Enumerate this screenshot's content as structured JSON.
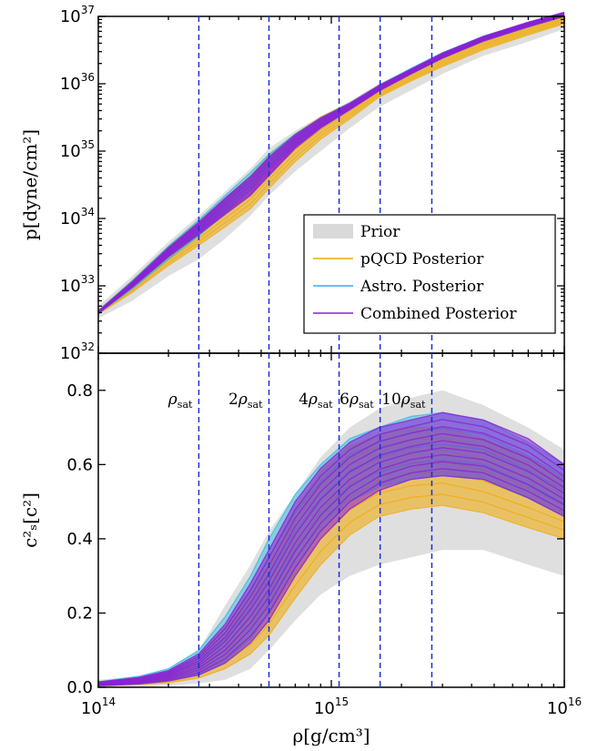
{
  "chart_data": [
    {
      "type": "line",
      "panel": "top",
      "ylabel": "p[dyne/cm²]",
      "yscale": "log",
      "xscale": "log",
      "xlim": [
        100000000000000.0,
        1e+16
      ],
      "ylim": [
        1e+32,
        1e+37
      ],
      "yticks": [
        {
          "base": "10",
          "exp": "32"
        },
        {
          "base": "10",
          "exp": "33"
        },
        {
          "base": "10",
          "exp": "34"
        },
        {
          "base": "10",
          "exp": "35"
        },
        {
          "base": "10",
          "exp": "36"
        },
        {
          "base": "10",
          "exp": "37"
        }
      ],
      "legend": {
        "position": "lower-right",
        "entries": [
          {
            "label": "Prior",
            "color": "#d9d9d9",
            "kind": "patch"
          },
          {
            "label": "pQCD Posterior",
            "color": "#f0a800",
            "kind": "line"
          },
          {
            "label": "Astro. Posterior",
            "color": "#22b8e6",
            "kind": "line"
          },
          {
            "label": "Combined Posterior",
            "color": "#8b1fd4",
            "kind": "line"
          }
        ]
      },
      "bands": {
        "x": [
          100000000000000.0,
          140000000000000.0,
          200000000000000.0,
          270000000000000.0,
          350000000000000.0,
          450000000000000.0,
          540000000000000.0,
          700000000000000.0,
          900000000000000.0,
          1200000000000000.0,
          1600000000000000.0,
          2200000000000000.0,
          3000000000000000.0,
          4500000000000000.0,
          7000000000000000.0,
          1e+16
        ],
        "prior_upper": [
          5e+32,
          1.4e+33,
          4.5e+33,
          1.1e+34,
          2.5e+34,
          5.5e+34,
          1.1e+35,
          2e+35,
          3.3e+35,
          5.5e+35,
          1e+36,
          1.7e+36,
          2.8e+36,
          5e+36,
          8e+36,
          1.1e+37
        ],
        "prior_lower": [
          3.3e+32,
          6e+32,
          1.4e+33,
          2.5e+33,
          5e+33,
          1.1e+34,
          2.2e+34,
          5e+34,
          1e+35,
          2.2e+35,
          4.5e+35,
          8e+35,
          1.4e+36,
          2.6e+36,
          4.2e+36,
          6.5e+36
        ],
        "pqcd_upper": [
          4.3e+32,
          1.2e+33,
          3.8e+33,
          9e+33,
          2e+34,
          4.3e+34,
          8.5e+34,
          1.8e+35,
          3.2e+35,
          5.2e+35,
          9.5e+35,
          1.65e+36,
          2.8e+36,
          5e+36,
          8e+36,
          1.1e+37
        ],
        "pqcd_lower": [
          3.8e+32,
          8e+32,
          2e+33,
          4e+33,
          7.5e+33,
          1.4e+34,
          2.8e+34,
          7e+34,
          1.5e+35,
          3e+35,
          6.3e+35,
          1.1e+36,
          1.8e+36,
          3.2e+36,
          5.3e+36,
          7.8e+36
        ],
        "astro_upper": [
          4.3e+32,
          1.2e+33,
          3.9e+33,
          9.5e+33,
          2.2e+34,
          4.8e+34,
          9e+34,
          1.8e+35,
          3.1e+35,
          5.2e+35,
          9.5e+35,
          1.7e+36,
          2.9e+36,
          5.1e+36,
          8.2e+36,
          1.15e+37
        ],
        "astro_lower": [
          3.9e+32,
          9e+32,
          2.5e+33,
          5.5e+33,
          1.2e+34,
          2.7e+34,
          5.5e+34,
          1.2e+35,
          2.3e+35,
          4.2e+35,
          8e+35,
          1.4e+36,
          2.4e+36,
          4.3e+36,
          7e+36,
          1e+37
        ],
        "combined_upper": [
          4.2e+32,
          1.15e+33,
          3.7e+33,
          8.8e+33,
          2e+34,
          4.2e+34,
          8.2e+34,
          1.75e+35,
          3.1e+35,
          5.1e+35,
          9.4e+35,
          1.65e+36,
          2.85e+36,
          5.05e+36,
          8.2e+36,
          1.15e+37
        ],
        "combined_lower": [
          3.9e+32,
          9.5e+32,
          2.7e+33,
          5.8e+33,
          1.15e+34,
          2.2e+34,
          4.3e+34,
          1.1e+35,
          2.2e+35,
          4.1e+35,
          7.8e+35,
          1.4e+36,
          2.4e+36,
          4.3e+36,
          7e+36,
          1e+37
        ]
      }
    },
    {
      "type": "line",
      "panel": "bottom",
      "xlabel": "ρ[g/cm³]",
      "ylabel": "c²ₛ[c²]",
      "xscale": "log",
      "xlim": [
        100000000000000.0,
        1e+16
      ],
      "ylim": [
        0.0,
        0.9
      ],
      "yticks": [
        "0.0",
        "0.2",
        "0.4",
        "0.6",
        "0.8"
      ],
      "xticks": [
        {
          "base": "10",
          "exp": "14"
        },
        {
          "base": "10",
          "exp": "15"
        },
        {
          "base": "10",
          "exp": "16"
        }
      ],
      "density_markers": [
        {
          "label": "ρ",
          "sub": "sat",
          "mult": "",
          "x": 270000000000000.0
        },
        {
          "label": "ρ",
          "sub": "sat",
          "mult": "2",
          "x": 540000000000000.0
        },
        {
          "label": "ρ",
          "sub": "sat",
          "mult": "4",
          "x": 1080000000000000.0
        },
        {
          "label": "ρ",
          "sub": "sat",
          "mult": "6",
          "x": 1620000000000000.0
        },
        {
          "label": "ρ",
          "sub": "sat",
          "mult": "10",
          "x": 2700000000000000.0
        }
      ],
      "bands": {
        "x": [
          100000000000000.0,
          150000000000000.0,
          200000000000000.0,
          270000000000000.0,
          350000000000000.0,
          450000000000000.0,
          540000000000000.0,
          700000000000000.0,
          900000000000000.0,
          1200000000000000.0,
          1600000000000000.0,
          2200000000000000.0,
          3000000000000000.0,
          4500000000000000.0,
          7000000000000000.0,
          1e+16
        ],
        "prior_upper": [
          0.02,
          0.03,
          0.05,
          0.1,
          0.22,
          0.33,
          0.42,
          0.52,
          0.62,
          0.7,
          0.75,
          0.78,
          0.8,
          0.76,
          0.7,
          0.64
        ],
        "prior_lower": [
          0.0,
          0.0,
          0.005,
          0.01,
          0.02,
          0.05,
          0.1,
          0.18,
          0.25,
          0.3,
          0.33,
          0.35,
          0.37,
          0.37,
          0.33,
          0.3
        ],
        "pqcd_upper": [
          0.015,
          0.025,
          0.04,
          0.08,
          0.16,
          0.26,
          0.35,
          0.48,
          0.58,
          0.65,
          0.68,
          0.7,
          0.7,
          0.67,
          0.62,
          0.56
        ],
        "pqcd_lower": [
          0.003,
          0.007,
          0.012,
          0.025,
          0.05,
          0.09,
          0.14,
          0.24,
          0.33,
          0.41,
          0.46,
          0.48,
          0.49,
          0.47,
          0.43,
          0.4
        ],
        "astro_upper": [
          0.015,
          0.03,
          0.05,
          0.1,
          0.19,
          0.3,
          0.4,
          0.52,
          0.6,
          0.67,
          0.7,
          0.73,
          0.74,
          0.72,
          0.66,
          0.6
        ],
        "astro_lower": [
          0.004,
          0.009,
          0.018,
          0.035,
          0.07,
          0.13,
          0.2,
          0.32,
          0.42,
          0.5,
          0.54,
          0.56,
          0.57,
          0.56,
          0.51,
          0.46
        ],
        "combined_upper": [
          0.014,
          0.027,
          0.045,
          0.09,
          0.17,
          0.28,
          0.37,
          0.5,
          0.59,
          0.66,
          0.7,
          0.72,
          0.74,
          0.72,
          0.67,
          0.6
        ],
        "combined_lower": [
          0.004,
          0.009,
          0.017,
          0.033,
          0.065,
          0.12,
          0.18,
          0.3,
          0.4,
          0.48,
          0.53,
          0.56,
          0.57,
          0.56,
          0.51,
          0.46
        ]
      }
    }
  ]
}
